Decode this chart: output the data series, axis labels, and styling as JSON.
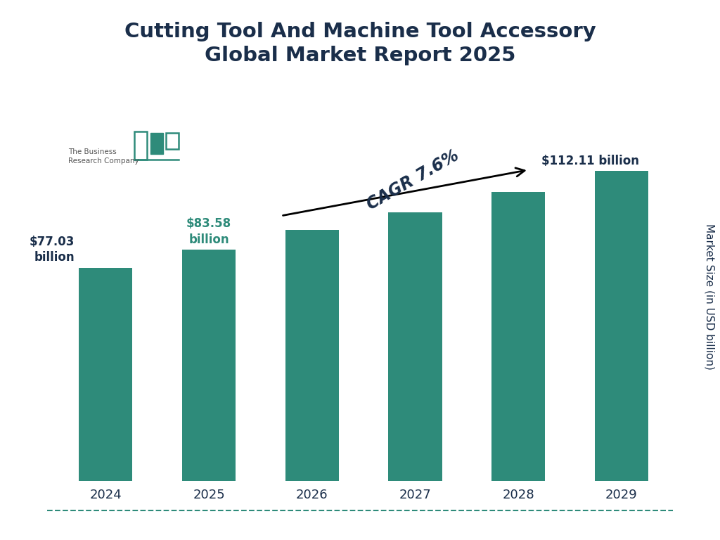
{
  "title": "Cutting Tool And Machine Tool Accessory\nGlobal Market Report 2025",
  "years": [
    "2024",
    "2025",
    "2026",
    "2027",
    "2028",
    "2029"
  ],
  "values": [
    77.03,
    83.58,
    90.94,
    97.3,
    104.6,
    112.11
  ],
  "bar_color": "#2e8b7a",
  "ylabel": "Market Size (in USD billion)",
  "title_color": "#1a2e4a",
  "label_2024": "$77.03\nbillion",
  "label_2025": "$83.58\nbillion",
  "label_2029": "$112.11 billion",
  "cagr_text": "CAGR 7.6%",
  "label_color_dark": "#1a2e4a",
  "label_color_green": "#2e8b7a",
  "background_color": "#ffffff",
  "bottom_line_color": "#2e8b7a",
  "ylim": [
    0,
    135
  ]
}
